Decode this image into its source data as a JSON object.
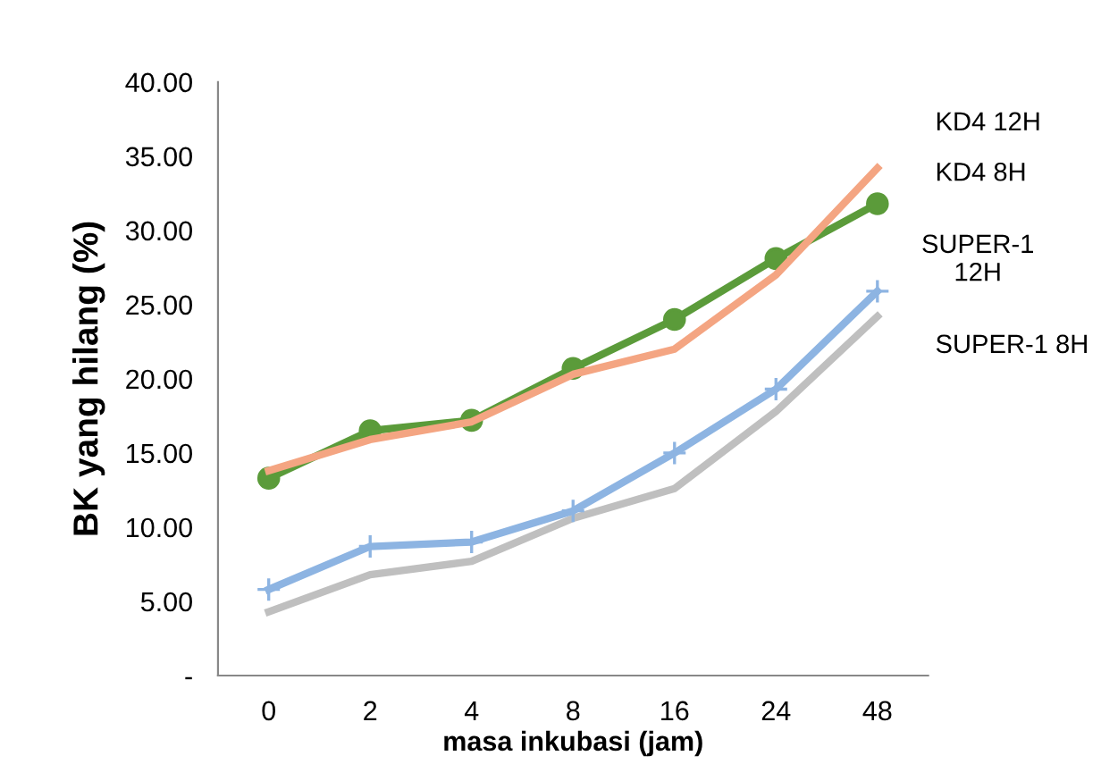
{
  "chart_data": {
    "type": "line",
    "xlabel": "masa inkubasi (jam)",
    "ylabel": "BK yang hilang (%)",
    "categories": [
      "0",
      "2",
      "4",
      "8",
      "16",
      "24",
      "48"
    ],
    "series": [
      {
        "name": "KD4 12H",
        "color": "#f4a582",
        "marker": "none",
        "values": [
          13.8,
          15.9,
          17.1,
          20.3,
          22.0,
          27.0,
          34.2
        ]
      },
      {
        "name": "KD4 8H",
        "color": "#5b9b3a",
        "marker": "circle",
        "values": [
          13.3,
          16.5,
          17.2,
          20.7,
          24.0,
          28.1,
          31.8
        ]
      },
      {
        "name": "SUPER-1\n12H",
        "color": "#8db4e2",
        "marker": "cross",
        "values": [
          5.8,
          8.7,
          9.0,
          11.1,
          15.0,
          19.3,
          25.9
        ]
      },
      {
        "name": "SUPER-1 8H",
        "color": "#bfbfbf",
        "marker": "none",
        "values": [
          4.3,
          6.8,
          7.7,
          10.6,
          12.6,
          17.8,
          24.2
        ]
      }
    ],
    "ylim": [
      0,
      40
    ],
    "yticks": [
      {
        "value": 0,
        "label": "-"
      },
      {
        "value": 5,
        "label": "5.00"
      },
      {
        "value": 10,
        "label": "10.00"
      },
      {
        "value": 15,
        "label": "15.00"
      },
      {
        "value": 20,
        "label": "20.00"
      },
      {
        "value": 25,
        "label": "25.00"
      },
      {
        "value": 30,
        "label": "30.00"
      },
      {
        "value": 35,
        "label": "35.00"
      },
      {
        "value": 40,
        "label": "40.00"
      }
    ],
    "grid": false,
    "legend": false
  }
}
